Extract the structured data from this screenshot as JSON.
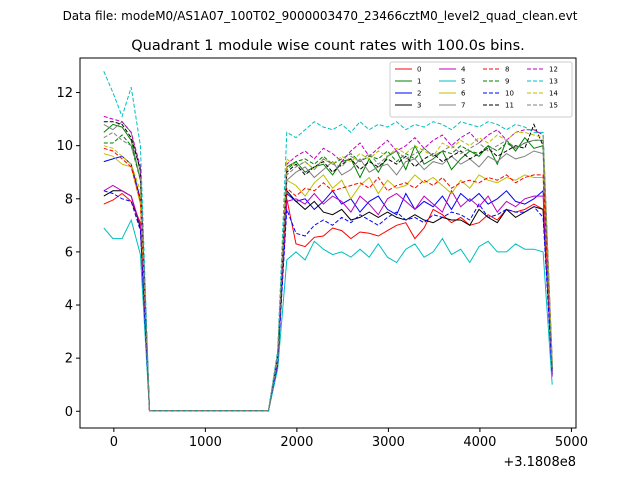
{
  "chart_data": {
    "type": "line",
    "suptitle": "Data file: modeM0/AS1A07_100T02_9000003470_23466cztM0_level2_quad_clean.evt",
    "title": "Quadrant 1 module wise count rates with 100.0s bins.",
    "xlabel": "",
    "ylabel": "",
    "offset_label": "+3.1808e8",
    "xlim": [
      -370,
      5050
    ],
    "ylim": [
      -0.63,
      13.3
    ],
    "xticks": [
      0,
      1000,
      2000,
      3000,
      4000,
      5000
    ],
    "xtick_labels": [
      "0",
      "1000",
      "2000",
      "3000",
      "4000",
      "5000"
    ],
    "yticks": [
      0,
      2,
      4,
      6,
      8,
      10,
      12
    ],
    "ytick_labels": [
      "0",
      "2",
      "4",
      "6",
      "8",
      "10",
      "12"
    ],
    "grid": false,
    "legend_position": "top-right",
    "x": [
      -110,
      -10,
      90,
      190,
      290,
      390,
      1690,
      1790,
      1890,
      1990,
      2090,
      2190,
      2290,
      2390,
      2490,
      2590,
      2690,
      2790,
      2890,
      2990,
      3090,
      3190,
      3290,
      3390,
      3490,
      3590,
      3690,
      3790,
      3890,
      3990,
      4090,
      4190,
      4290,
      4390,
      4490,
      4590,
      4690,
      4790
    ],
    "series": [
      {
        "name": "0",
        "color": "#ff0000",
        "dash": "solid",
        "values": [
          7.8,
          7.95,
          8.2,
          7.9,
          7.1,
          0.02,
          0.02,
          1.8,
          8.0,
          6.3,
          6.2,
          6.55,
          6.6,
          6.9,
          6.8,
          6.5,
          6.75,
          6.7,
          6.6,
          6.8,
          7.0,
          7.1,
          6.5,
          6.9,
          7.6,
          7.4,
          7.1,
          7.3,
          7.0,
          7.1,
          7.4,
          7.2,
          7.6,
          7.5,
          7.6,
          7.8,
          7.6,
          1.7
        ]
      },
      {
        "name": "1",
        "color": "#008000",
        "dash": "solid",
        "values": [
          10.5,
          10.8,
          10.7,
          10.2,
          8.7,
          0.02,
          0.02,
          2.1,
          9.2,
          9.4,
          9.0,
          9.2,
          9.3,
          8.9,
          9.4,
          9.5,
          8.8,
          9.5,
          9.0,
          9.6,
          9.8,
          9.1,
          10.0,
          9.3,
          9.5,
          9.8,
          9.1,
          9.5,
          9.8,
          9.6,
          10.0,
          9.3,
          10.2,
          9.8,
          10.3,
          9.9,
          10.0,
          1.5
        ]
      },
      {
        "name": "2",
        "color": "#0000ff",
        "dash": "solid",
        "values": [
          9.4,
          9.5,
          9.6,
          9.3,
          8.0,
          0.02,
          0.02,
          1.8,
          8.2,
          7.9,
          8.0,
          7.6,
          7.9,
          8.3,
          7.8,
          8.0,
          7.5,
          7.9,
          8.1,
          7.6,
          7.4,
          8.2,
          7.6,
          7.9,
          7.7,
          8.1,
          7.6,
          8.2,
          7.9,
          8.2,
          7.8,
          8.0,
          8.3,
          7.9,
          7.8,
          8.0,
          8.3,
          1.4
        ]
      },
      {
        "name": "3",
        "color": "#000000",
        "dash": "solid",
        "values": [
          8.1,
          8.3,
          8.3,
          8.1,
          6.9,
          0.02,
          0.02,
          1.9,
          8.3,
          7.9,
          7.6,
          7.9,
          7.5,
          7.4,
          7.6,
          7.2,
          7.3,
          7.5,
          7.3,
          7.5,
          7.3,
          7.2,
          7.4,
          7.2,
          7.1,
          7.3,
          7.2,
          7.2,
          7.0,
          7.6,
          7.3,
          7.1,
          7.6,
          7.3,
          7.5,
          7.7,
          7.6,
          1.6
        ]
      },
      {
        "name": "4",
        "color": "#bf00bf",
        "dash": "solid",
        "values": [
          8.3,
          8.5,
          8.3,
          8.1,
          7.0,
          0.02,
          0.02,
          1.9,
          7.9,
          8.0,
          7.8,
          8.2,
          7.8,
          8.1,
          7.9,
          7.5,
          8.1,
          7.8,
          7.4,
          8.0,
          8.2,
          7.9,
          7.6,
          8.1,
          7.8,
          7.5,
          8.3,
          7.7,
          8.0,
          7.7,
          8.1,
          7.5,
          7.9,
          7.7,
          8.0,
          8.1,
          8.1,
          1.3
        ]
      },
      {
        "name": "5",
        "color": "#00bfbf",
        "dash": "solid",
        "values": [
          6.9,
          6.5,
          6.5,
          7.2,
          5.9,
          0.02,
          0.02,
          1.6,
          5.7,
          6.0,
          5.7,
          6.4,
          6.1,
          5.9,
          6.0,
          5.8,
          6.1,
          5.8,
          6.3,
          5.8,
          5.6,
          6.1,
          6.3,
          5.8,
          6.0,
          6.5,
          5.9,
          6.1,
          5.6,
          6.2,
          6.4,
          6.0,
          6.0,
          6.3,
          6.1,
          6.1,
          6.0,
          1.0
        ]
      },
      {
        "name": "6",
        "color": "#bfbf00",
        "dash": "solid",
        "values": [
          9.7,
          9.6,
          9.3,
          9.2,
          7.8,
          0.02,
          0.02,
          2.0,
          8.7,
          8.5,
          8.1,
          8.6,
          8.9,
          8.4,
          8.7,
          8.0,
          8.5,
          8.8,
          8.2,
          8.7,
          8.4,
          8.5,
          8.9,
          8.6,
          8.8,
          8.5,
          8.2,
          8.7,
          8.4,
          8.9,
          8.7,
          8.6,
          8.8,
          8.7,
          8.9,
          8.8,
          8.8,
          1.6
        ]
      },
      {
        "name": "7",
        "color": "#808080",
        "dash": "solid",
        "values": [
          10.8,
          10.6,
          10.9,
          10.5,
          9.0,
          0.02,
          0.02,
          2.1,
          8.7,
          9.0,
          9.2,
          8.8,
          9.1,
          9.4,
          8.9,
          9.1,
          9.5,
          9.0,
          9.2,
          9.3,
          8.9,
          9.4,
          9.5,
          9.1,
          9.4,
          9.3,
          9.6,
          9.3,
          9.5,
          9.2,
          9.6,
          9.4,
          9.7,
          9.5,
          9.6,
          9.8,
          9.7,
          1.6
        ]
      },
      {
        "name": "8",
        "color": "#ff0000",
        "dash": "dashed",
        "values": [
          9.9,
          9.8,
          9.5,
          9.2,
          7.9,
          0.02,
          0.02,
          2.0,
          8.4,
          8.1,
          8.4,
          8.3,
          8.6,
          8.3,
          8.4,
          8.5,
          8.6,
          8.4,
          8.8,
          8.3,
          8.5,
          8.6,
          8.4,
          8.7,
          8.5,
          8.8,
          8.4,
          8.6,
          8.7,
          8.6,
          8.8,
          8.7,
          8.9,
          8.6,
          8.8,
          8.9,
          8.9,
          1.6
        ]
      },
      {
        "name": "9",
        "color": "#008000",
        "dash": "dashed",
        "values": [
          10.1,
          10.1,
          10.4,
          10.0,
          8.7,
          0.02,
          0.02,
          2.1,
          9.1,
          9.4,
          9.5,
          9.3,
          9.6,
          9.3,
          9.5,
          9.7,
          9.4,
          9.6,
          9.5,
          9.8,
          9.4,
          9.7,
          9.5,
          9.9,
          9.6,
          9.8,
          9.7,
          10.0,
          9.8,
          9.7,
          10.0,
          9.8,
          10.1,
          9.9,
          10.1,
          10.2,
          10.2,
          1.8
        ]
      },
      {
        "name": "10",
        "color": "#0000ff",
        "dash": "dashed",
        "values": [
          8.3,
          8.2,
          8.0,
          7.9,
          6.8,
          0.02,
          0.02,
          1.8,
          7.6,
          6.7,
          6.6,
          7.0,
          7.2,
          7.0,
          7.3,
          7.1,
          7.4,
          7.2,
          7.0,
          7.3,
          7.5,
          7.2,
          7.3,
          7.1,
          7.4,
          7.3,
          7.5,
          7.4,
          7.2,
          7.8,
          7.3,
          7.4,
          7.6,
          7.5,
          7.5,
          7.7,
          7.3,
          1.4
        ]
      },
      {
        "name": "11",
        "color": "#000000",
        "dash": "dashed",
        "values": [
          10.9,
          10.9,
          10.8,
          10.3,
          9.1,
          0.02,
          0.02,
          2.1,
          9.0,
          9.3,
          8.9,
          9.2,
          9.4,
          9.0,
          9.3,
          9.5,
          9.1,
          9.4,
          9.2,
          9.5,
          9.3,
          9.6,
          9.2,
          9.5,
          9.7,
          9.4,
          9.6,
          9.8,
          9.5,
          9.7,
          9.9,
          9.6,
          9.8,
          10.0,
          9.9,
          10.8,
          10.0,
          1.7
        ]
      },
      {
        "name": "12",
        "color": "#bf00bf",
        "dash": "dashed",
        "values": [
          11.1,
          11.0,
          10.9,
          10.5,
          9.2,
          0.02,
          0.02,
          2.2,
          9.3,
          9.6,
          9.8,
          9.5,
          9.9,
          9.7,
          9.4,
          9.8,
          10.1,
          9.6,
          9.9,
          10.2,
          9.8,
          10.0,
          10.3,
          9.9,
          10.2,
          10.4,
          10.0,
          10.3,
          10.5,
          10.1,
          10.4,
          10.6,
          10.2,
          10.5,
          10.6,
          10.6,
          10.4,
          1.9
        ]
      },
      {
        "name": "13",
        "color": "#00bfbf",
        "dash": "dashed",
        "values": [
          12.8,
          12.0,
          11.1,
          12.2,
          10.0,
          0.02,
          0.02,
          2.3,
          10.5,
          10.3,
          10.6,
          10.9,
          10.7,
          10.6,
          10.8,
          10.5,
          10.9,
          10.6,
          10.8,
          10.7,
          10.9,
          10.6,
          10.8,
          10.7,
          10.9,
          10.8,
          10.6,
          10.9,
          10.8,
          10.7,
          10.9,
          10.8,
          10.6,
          10.8,
          10.7,
          10.5,
          10.5,
          1.6
        ]
      },
      {
        "name": "14",
        "color": "#bfbf00",
        "dash": "dashed",
        "values": [
          10.0,
          9.9,
          9.6,
          9.3,
          8.3,
          0.02,
          0.02,
          2.0,
          9.5,
          9.2,
          9.4,
          9.1,
          9.5,
          9.3,
          9.6,
          9.4,
          9.7,
          9.5,
          9.8,
          9.6,
          9.9,
          9.7,
          10.0,
          9.8,
          9.6,
          10.1,
          9.9,
          10.2,
          10.0,
          10.3,
          10.1,
          10.4,
          10.2,
          10.5,
          10.5,
          10.4,
          10.3,
          1.9
        ]
      },
      {
        "name": "15",
        "color": "#808080",
        "dash": "dashed",
        "values": [
          10.3,
          10.5,
          10.2,
          10.0,
          8.8,
          0.02,
          0.02,
          2.1,
          8.9,
          9.2,
          9.4,
          9.1,
          9.5,
          9.3,
          9.2,
          9.6,
          9.4,
          9.7,
          9.3,
          9.6,
          9.8,
          9.5,
          9.7,
          9.9,
          9.6,
          9.8,
          10.0,
          9.7,
          9.9,
          10.1,
          9.8,
          10.0,
          10.2,
          9.9,
          10.1,
          10.2,
          10.2,
          1.7
        ]
      }
    ]
  }
}
